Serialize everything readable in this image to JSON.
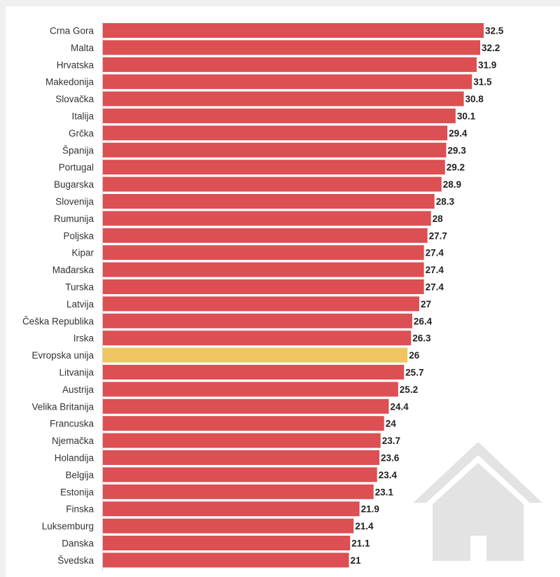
{
  "chart_data": {
    "type": "bar",
    "orientation": "horizontal",
    "categories": [
      "Crna Gora",
      "Malta",
      "Hrvatska",
      "Makedonija",
      "Slovačka",
      "Italija",
      "Grčka",
      "Španija",
      "Portugal",
      "Bugarska",
      "Slovenija",
      "Rumunija",
      "Poljska",
      "Kipar",
      "Mađarska",
      "Turska",
      "Latvija",
      "Češka Republika",
      "Irska",
      "Evropska unija",
      "Litvanija",
      "Austrija",
      "Velika Britanija",
      "Francuska",
      "Njemačka",
      "Holandija",
      "Belgija",
      "Estonija",
      "Finska",
      "Luksemburg",
      "Danska",
      "Švedska"
    ],
    "values": [
      32.5,
      32.2,
      31.9,
      31.5,
      30.8,
      30.1,
      29.4,
      29.3,
      29.2,
      28.9,
      28.3,
      28,
      27.7,
      27.4,
      27.4,
      27.4,
      27,
      26.4,
      26.3,
      26,
      25.7,
      25.2,
      24.4,
      24,
      23.7,
      23.6,
      23.4,
      23.1,
      21.9,
      21.4,
      21.1,
      21
    ],
    "value_labels": [
      "32.5",
      "32.2",
      "31.9",
      "31.5",
      "30.8",
      "30.1",
      "29.4",
      "29.3",
      "29.2",
      "28.9",
      "28.3",
      "28",
      "27.7",
      "27.4",
      "27.4",
      "27.4",
      "27",
      "26.4",
      "26.3",
      "26",
      "25.7",
      "25.2",
      "24.4",
      "24",
      "23.7",
      "23.6",
      "23.4",
      "23.1",
      "21.9",
      "21.4",
      "21.1",
      "21"
    ],
    "highlight": "Evropska unija",
    "xlim": [
      0,
      32.5
    ],
    "grid": false,
    "colors": {
      "bar": "#dc4f53",
      "highlight": "#efc661",
      "watermark": "#e3e3e3"
    }
  },
  "watermark_icon": "house-icon"
}
